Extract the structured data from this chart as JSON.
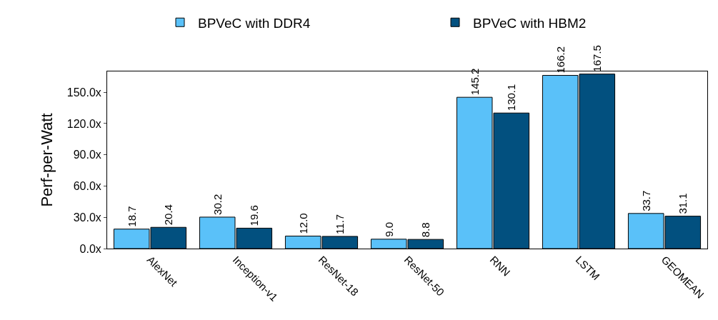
{
  "chart_data": {
    "type": "bar",
    "ylabel": "Perf-per-Watt",
    "categories": [
      "AlexNet",
      "Inception-v1",
      "ResNet-18",
      "ResNet-50",
      "RNN",
      "LSTM",
      "GEOMEAN"
    ],
    "series": [
      {
        "name": "BPVeC with DDR4",
        "color": "#5ac1f9",
        "values": [
          18.7,
          30.2,
          12.0,
          9.0,
          145.2,
          166.2,
          33.7
        ],
        "value_labels": [
          "18.7",
          "30.2",
          "12.0",
          "9.0",
          "145.2",
          "166.2",
          "33.7"
        ]
      },
      {
        "name": "BPVeC with HBM2",
        "color": "#02507f",
        "values": [
          20.4,
          19.6,
          11.7,
          8.8,
          130.1,
          167.5,
          31.1
        ],
        "value_labels": [
          "20.4",
          "19.6",
          "11.7",
          "8.8",
          "130.1",
          "167.5",
          "31.1"
        ]
      }
    ],
    "ylim": [
      0,
      170
    ],
    "yticks": [
      {
        "value": 0,
        "label": "0.0x"
      },
      {
        "value": 30,
        "label": "30.0x"
      },
      {
        "value": 60,
        "label": "60.0x"
      },
      {
        "value": 90,
        "label": "90.0x"
      },
      {
        "value": 120,
        "label": "120.0x"
      },
      {
        "value": 150,
        "label": "150.0x"
      }
    ],
    "grid": false,
    "legend": "top"
  }
}
